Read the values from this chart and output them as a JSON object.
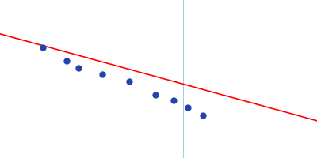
{
  "title": "",
  "background_color": "#ffffff",
  "line_color": "#ff0000",
  "line_width": 1.2,
  "dot_color": "#2244aa",
  "dot_size": 25,
  "vline_color": "#aaccdd",
  "vline_lw": 0.8,
  "x_data": [
    0.095,
    0.175,
    0.215,
    0.295,
    0.385,
    0.475,
    0.535,
    0.585,
    0.635
  ],
  "y_data": [
    0.74,
    0.68,
    0.65,
    0.62,
    0.59,
    0.53,
    0.505,
    0.475,
    0.44
  ],
  "vline_x": 0.567,
  "line_x0": -0.05,
  "line_x1": 1.02,
  "line_y0": 0.8,
  "line_y1": 0.415,
  "xlim": [
    -0.05,
    1.02
  ],
  "ylim": [
    0.25,
    0.95
  ],
  "figsize": [
    4.0,
    2.0
  ],
  "dpi": 100
}
